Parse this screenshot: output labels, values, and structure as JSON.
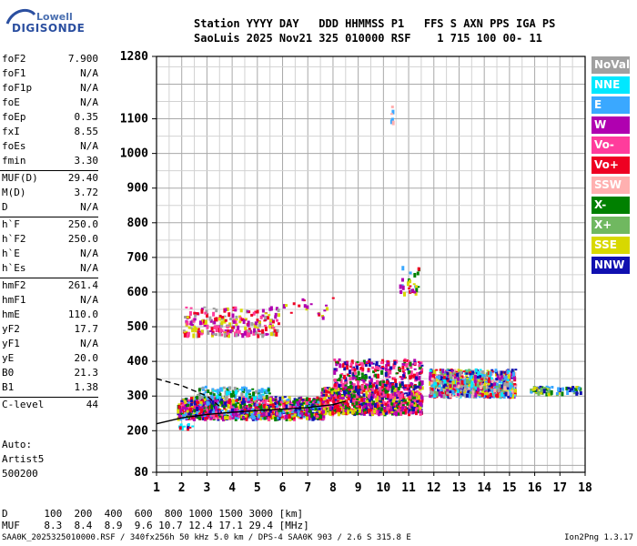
{
  "logo": {
    "brand": "Lowell",
    "name": "DIGISONDE"
  },
  "header": {
    "line1": "Station YYYY DAY   DDD HHMMSS P1   FFS S AXN PPS IGA PS",
    "line2": "SaoLuis 2025 Nov21 325 010000 RSF    1 715 100 00- 11"
  },
  "params": [
    {
      "name": "foF2",
      "value": "7.900"
    },
    {
      "name": "foF1",
      "value": "N/A"
    },
    {
      "name": "foF1p",
      "value": "N/A"
    },
    {
      "name": "foE",
      "value": "N/A"
    },
    {
      "name": "foEp",
      "value": "0.35"
    },
    {
      "name": "fxI",
      "value": "8.55"
    },
    {
      "name": "foEs",
      "value": "N/A"
    },
    {
      "name": "fmin",
      "value": "3.30"
    },
    {
      "name": "MUF(D)",
      "value": "29.40"
    },
    {
      "name": "M(D)",
      "value": "3.72"
    },
    {
      "name": "D",
      "value": "N/A"
    },
    {
      "name": "h`F",
      "value": "250.0"
    },
    {
      "name": "h`F2",
      "value": "250.0"
    },
    {
      "name": "h`E",
      "value": "N/A"
    },
    {
      "name": "h`Es",
      "value": "N/A"
    },
    {
      "name": "hmF2",
      "value": "261.4"
    },
    {
      "name": "hmF1",
      "value": "N/A"
    },
    {
      "name": "hmE",
      "value": "110.0"
    },
    {
      "name": "yF2",
      "value": "17.7"
    },
    {
      "name": "yF1",
      "value": "N/A"
    },
    {
      "name": "yE",
      "value": "20.0"
    },
    {
      "name": "B0",
      "value": "21.3"
    },
    {
      "name": "B1",
      "value": "1.38"
    },
    {
      "name": "C-level",
      "value": "44"
    }
  ],
  "auto": {
    "label": "Auto:",
    "artist": "Artist5",
    "code": "500200"
  },
  "footer": {
    "d_row": "D      100  200  400  600  800 1000 1500 3000 [km]",
    "muf_row": "MUF    8.3  8.4  8.9  9.6 10.7 12.4 17.1 29.4 [MHz]",
    "info": "SAA0K_2025325010000.RSF / 340fx256h 50 kHz 5.0 km / DPS-4 SAA0K 903 / 2.6 S 315.8 E",
    "version": "Ion2Png 1.3.17"
  },
  "legend": [
    {
      "label": "NoVal",
      "color": "#a0a0a0"
    },
    {
      "label": "NNE",
      "color": "#00e8ff"
    },
    {
      "label": "E",
      "color": "#3aa8ff"
    },
    {
      "label": "W",
      "color": "#b000b0"
    },
    {
      "label": "Vo-",
      "color": "#ff3c9c"
    },
    {
      "label": "Vo+",
      "color": "#ee0022"
    },
    {
      "label": "SSW",
      "color": "#ffb0b0"
    },
    {
      "label": "X-",
      "color": "#008000"
    },
    {
      "label": "X+",
      "color": "#70b860"
    },
    {
      "label": "SSE",
      "color": "#d8d800"
    },
    {
      "label": "NNW",
      "color": "#1010b0"
    }
  ],
  "chart_data": {
    "type": "scatter",
    "x_ticks": [
      1,
      2,
      3,
      4,
      5,
      6,
      7,
      8,
      9,
      10,
      11,
      12,
      13,
      14,
      15,
      16,
      17,
      18
    ],
    "y_ticks": [
      80,
      200,
      300,
      400,
      500,
      600,
      700,
      800,
      900,
      1000,
      1100,
      1280
    ],
    "xlim": [
      1,
      18
    ],
    "ylim": [
      80,
      1280
    ],
    "grid": true,
    "legend_position": "right",
    "clusters": [
      {
        "x": [
          1.8,
          2.4
        ],
        "y": [
          210,
          225
        ],
        "colors": [
          "#1010b0",
          "#ee0022",
          "#00e8ff"
        ],
        "density": 10
      },
      {
        "x": [
          1.8,
          7.6
        ],
        "y": [
          240,
          300
        ],
        "colors": [
          "#1010b0",
          "#b000b0",
          "#ee0022",
          "#3aa8ff",
          "#008000",
          "#d8d800",
          "#ff3c9c"
        ],
        "density": 1100
      },
      {
        "x": [
          2.5,
          5.5
        ],
        "y": [
          300,
          330
        ],
        "colors": [
          "#3aa8ff",
          "#00e8ff",
          "#008000",
          "#a0a0a0"
        ],
        "density": 120
      },
      {
        "x": [
          7.5,
          11.5
        ],
        "y": [
          255,
          330
        ],
        "colors": [
          "#ee0022",
          "#ff3c9c",
          "#b000b0",
          "#1010b0",
          "#008000",
          "#d8d800"
        ],
        "density": 900
      },
      {
        "x": [
          8.0,
          11.5
        ],
        "y": [
          330,
          410
        ],
        "colors": [
          "#ee0022",
          "#b000b0",
          "#ff3c9c",
          "#1010b0",
          "#008000"
        ],
        "density": 300
      },
      {
        "x": [
          11.8,
          15.2
        ],
        "y": [
          305,
          380
        ],
        "colors": [
          "#3aa8ff",
          "#00e8ff",
          "#70b860",
          "#d8d800",
          "#ffb0b0",
          "#b000b0",
          "#ee0022",
          "#1010b0",
          "#a0a0a0"
        ],
        "density": 1000
      },
      {
        "x": [
          15.8,
          17.8
        ],
        "y": [
          310,
          330
        ],
        "colors": [
          "#3aa8ff",
          "#008000",
          "#70b860",
          "#d8d800",
          "#1010b0"
        ],
        "density": 80
      },
      {
        "x": [
          2.0,
          5.8
        ],
        "y": [
          480,
          560
        ],
        "colors": [
          "#ee0022",
          "#b000b0",
          "#ff3c9c",
          "#d8d800",
          "#a0a0a0"
        ],
        "density": 260
      },
      {
        "x": [
          6.0,
          8.0
        ],
        "y": [
          530,
          590
        ],
        "colors": [
          "#b000b0",
          "#ee0022",
          "#d8d800"
        ],
        "density": 20
      },
      {
        "x": [
          10.6,
          11.4
        ],
        "y": [
          600,
          680
        ],
        "colors": [
          "#008000",
          "#b000b0",
          "#ee0022",
          "#d8d800",
          "#3aa8ff"
        ],
        "density": 30
      },
      {
        "x": [
          10.2,
          10.4
        ],
        "y": [
          1090,
          1140
        ],
        "colors": [
          "#ffb0b0",
          "#3aa8ff"
        ],
        "density": 6
      }
    ],
    "curves": [
      {
        "name": "virtual-height trace",
        "style": "solid",
        "x": [
          1,
          2,
          3,
          4,
          5,
          6,
          7,
          8,
          8.5
        ],
        "y": [
          220,
          237,
          247,
          253,
          258,
          262,
          267,
          275,
          285
        ]
      },
      {
        "name": "E-layer trace",
        "style": "dashed",
        "x": [
          1,
          2,
          3,
          3.5
        ],
        "y": [
          350,
          330,
          300,
          270
        ]
      }
    ]
  }
}
